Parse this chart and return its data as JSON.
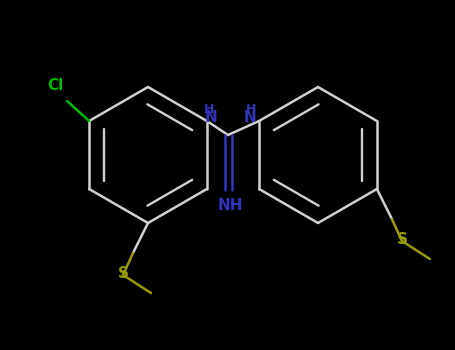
{
  "background_color": "#000000",
  "bond_color": "#d0d0d0",
  "bond_width": 1.8,
  "cl_color": "#00bb00",
  "s_color": "#999900",
  "n_color": "#3333bb",
  "figsize": [
    4.55,
    3.5
  ],
  "dpi": 100,
  "xlim": [
    0,
    455
  ],
  "ylim": [
    0,
    350
  ]
}
